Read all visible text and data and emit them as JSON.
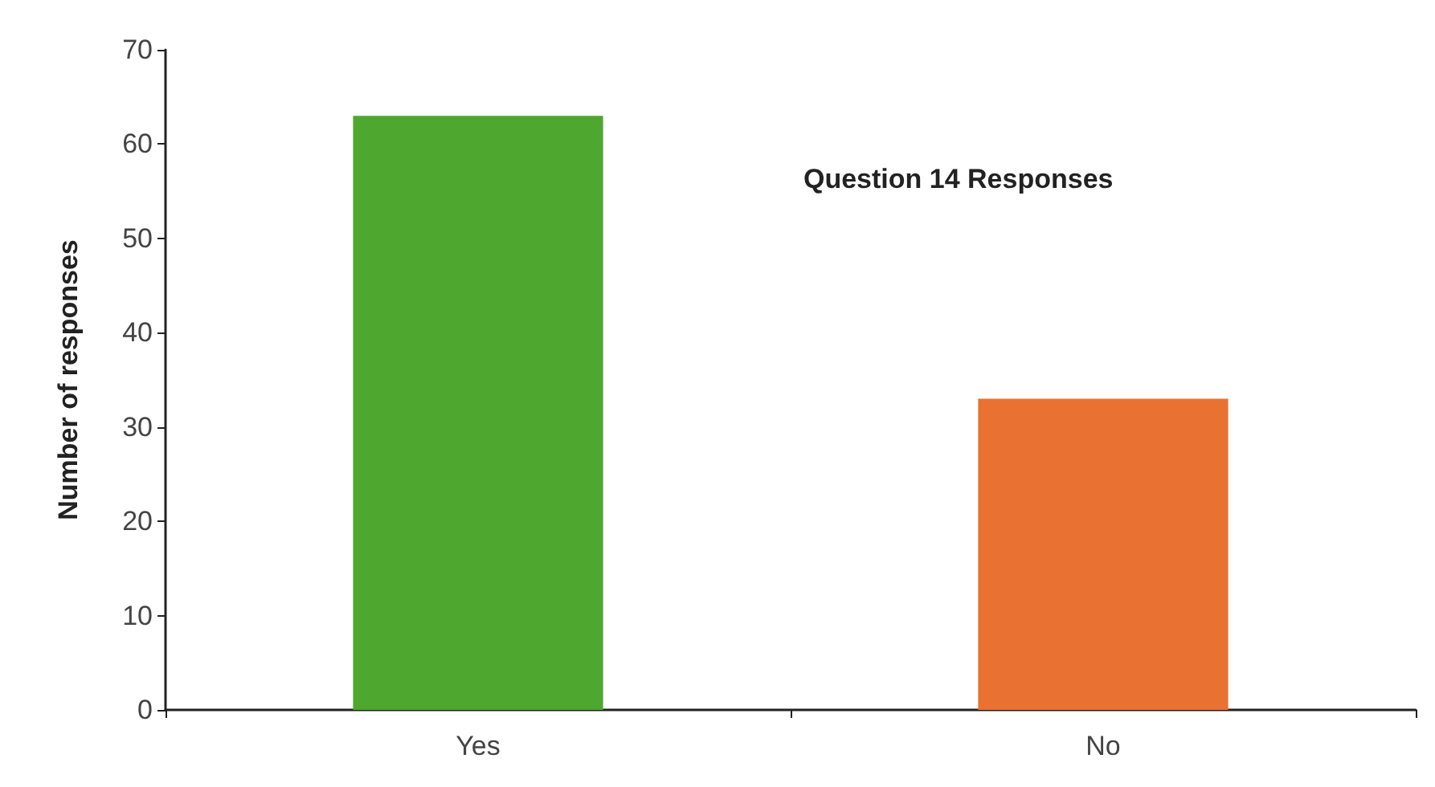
{
  "chart_data": {
    "type": "bar",
    "title": "Question 14 Responses",
    "ylabel": "Number of responses",
    "categories": [
      "Yes",
      "No"
    ],
    "values": [
      63,
      33
    ],
    "colors": [
      "#4ea72e",
      "#e97132"
    ],
    "ylim": [
      0,
      70
    ],
    "yticks": [
      0,
      10,
      20,
      30,
      40,
      50,
      60,
      70
    ],
    "grid": false
  }
}
